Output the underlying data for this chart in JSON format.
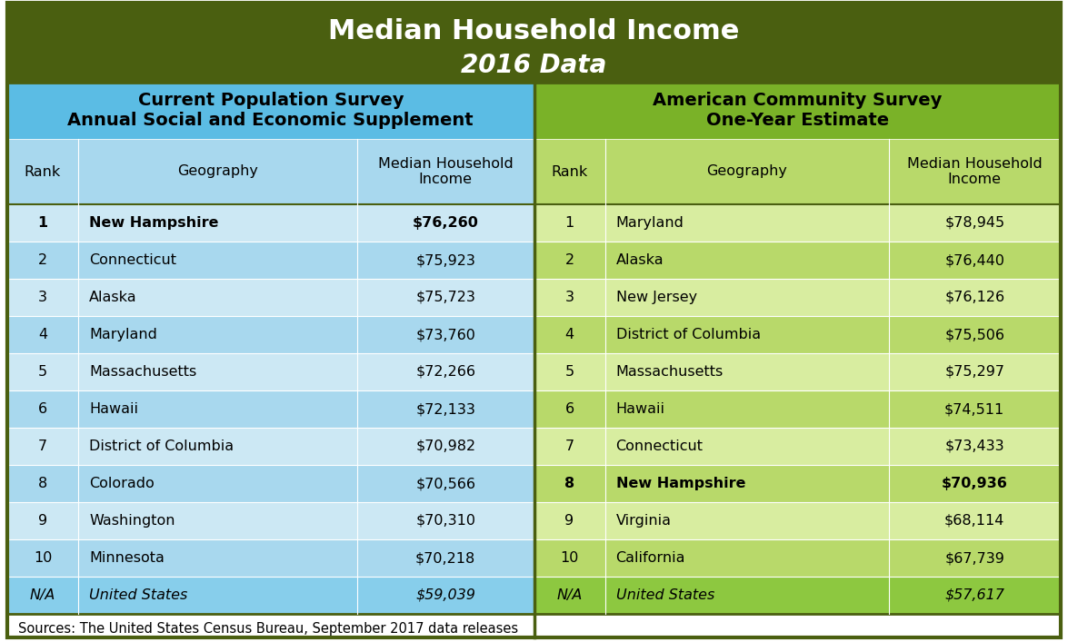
{
  "title_line1": "Median Household Income",
  "title_line2": "2016 Data",
  "header_left": "Current Population Survey\nAnnual Social and Economic Supplement",
  "header_right": "American Community Survey\nOne-Year Estimate",
  "col_headers": [
    "Rank",
    "Geography",
    "Median Household\nIncome",
    "Rank",
    "Geography",
    "Median Household\nIncome"
  ],
  "left_data": [
    [
      "1",
      "New Hampshire",
      "$76,260",
      true
    ],
    [
      "2",
      "Connecticut",
      "$75,923",
      false
    ],
    [
      "3",
      "Alaska",
      "$75,723",
      false
    ],
    [
      "4",
      "Maryland",
      "$73,760",
      false
    ],
    [
      "5",
      "Massachusetts",
      "$72,266",
      false
    ],
    [
      "6",
      "Hawaii",
      "$72,133",
      false
    ],
    [
      "7",
      "District of Columbia",
      "$70,982",
      false
    ],
    [
      "8",
      "Colorado",
      "$70,566",
      false
    ],
    [
      "9",
      "Washington",
      "$70,310",
      false
    ],
    [
      "10",
      "Minnesota",
      "$70,218",
      false
    ],
    [
      "N/A",
      "United States",
      "$59,039",
      false
    ]
  ],
  "right_data": [
    [
      "1",
      "Maryland",
      "$78,945",
      false
    ],
    [
      "2",
      "Alaska",
      "$76,440",
      false
    ],
    [
      "3",
      "New Jersey",
      "$76,126",
      false
    ],
    [
      "4",
      "District of Columbia",
      "$75,506",
      false
    ],
    [
      "5",
      "Massachusetts",
      "$75,297",
      false
    ],
    [
      "6",
      "Hawaii",
      "$74,511",
      false
    ],
    [
      "7",
      "Connecticut",
      "$73,433",
      false
    ],
    [
      "8",
      "New Hampshire",
      "$70,936",
      true
    ],
    [
      "9",
      "Virginia",
      "$68,114",
      false
    ],
    [
      "10",
      "California",
      "$67,739",
      false
    ],
    [
      "N/A",
      "United States",
      "$57,617",
      false
    ]
  ],
  "source_text": "Sources: The United States Census Bureau, September 2017 data releases",
  "title_bg": "#4a5f10",
  "header_left_bg": "#5bbce4",
  "header_right_bg": "#7ab228",
  "col_header_left_bg": "#a8d8ee",
  "col_header_right_bg": "#b8d96a",
  "row_even_left": "#cce8f4",
  "row_odd_left": "#a8d8ee",
  "row_even_right": "#d8eda0",
  "row_odd_right": "#b8d96a",
  "na_row_left": "#87ceeb",
  "na_row_right": "#8dc840",
  "title_text_color": "#ffffff",
  "source_bg": "#ffffff",
  "border_color": "#4a5f10",
  "mid_separator_color": "#4a5f10"
}
